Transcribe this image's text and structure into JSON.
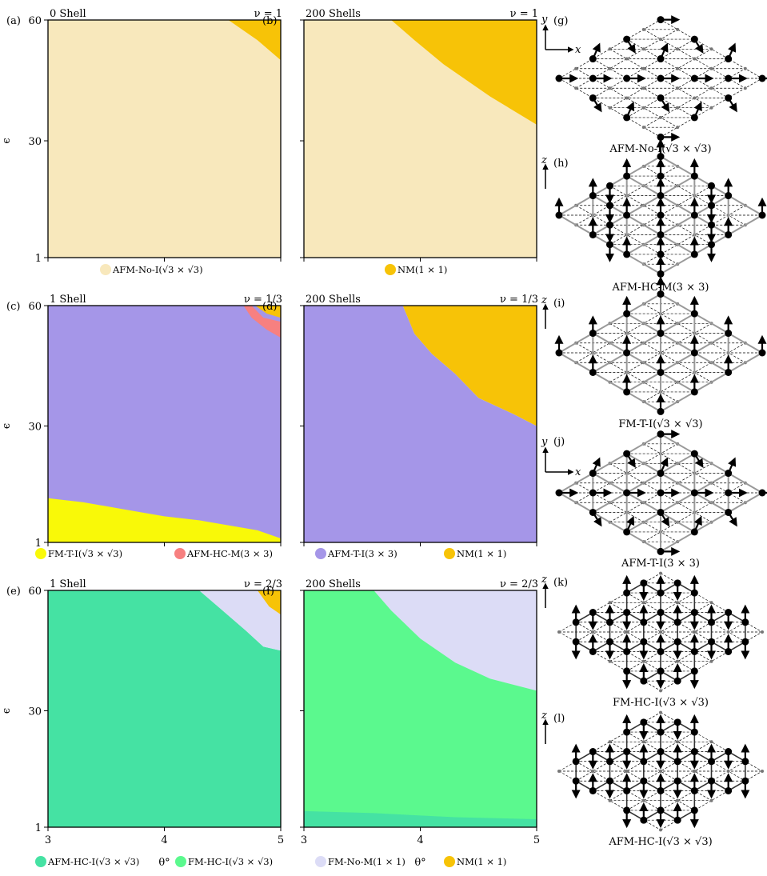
{
  "colors": {
    "AFM-No-I": "#f8e8bc",
    "NM": "#f7c307",
    "AFM-T-I": "#a596e8",
    "FM-T-I": "#f9f908",
    "AFM-HC-M": "#f78080",
    "AFM-HC-I": "#45e2a3",
    "FM-HC-I": "#5bf98e",
    "FM-No-M": "#dcdcf6"
  },
  "chart_data": [
    {
      "id": "a",
      "type": "area",
      "panel_label": "(a)",
      "title": "0 Shell",
      "nu": "ν = 1",
      "xlim": [
        3,
        5
      ],
      "ylim": [
        1,
        60
      ],
      "xticks": [],
      "yticks": [
        "1",
        "30",
        "60"
      ],
      "ylabel": "ϵ",
      "xlabel": "",
      "regions": [
        {
          "phase": "AFM-No-I",
          "color": "#f8e8bc",
          "polygon": [
            [
              3,
              1
            ],
            [
              5,
              1
            ],
            [
              5,
              50
            ],
            [
              4.8,
              55
            ],
            [
              4.55,
              60
            ],
            [
              3,
              60
            ]
          ]
        },
        {
          "phase": "NM",
          "color": "#f7c307",
          "polygon": [
            [
              4.55,
              60
            ],
            [
              4.8,
              55
            ],
            [
              5,
              50
            ],
            [
              5,
              60
            ]
          ]
        }
      ],
      "legend": [
        {
          "label": "AFM-No-I(√3 × √3)",
          "color": "#f8e8bc"
        }
      ]
    },
    {
      "id": "b",
      "type": "area",
      "panel_label": "(b)",
      "title": "200 Shells",
      "nu": "ν = 1",
      "xlim": [
        3,
        5
      ],
      "ylim": [
        1,
        60
      ],
      "xticks": [],
      "yticks": [],
      "xlabel": "",
      "ylabel": "",
      "regions": [
        {
          "phase": "AFM-No-I",
          "color": "#f8e8bc",
          "polygon": [
            [
              3,
              1
            ],
            [
              5,
              1
            ],
            [
              5,
              34
            ],
            [
              4.6,
              41
            ],
            [
              4.2,
              49
            ],
            [
              3.95,
              55
            ],
            [
              3.75,
              60
            ],
            [
              3,
              60
            ]
          ]
        },
        {
          "phase": "NM",
          "color": "#f7c307",
          "polygon": [
            [
              3.75,
              60
            ],
            [
              3.95,
              55
            ],
            [
              4.2,
              49
            ],
            [
              4.6,
              41
            ],
            [
              5,
              34
            ],
            [
              5,
              60
            ]
          ]
        }
      ],
      "legend": [
        {
          "label": "NM(1 × 1)",
          "color": "#f7c307"
        }
      ]
    },
    {
      "id": "c",
      "type": "area",
      "panel_label": "(c)",
      "title": "1 Shell",
      "nu": "ν = 1/3",
      "xlim": [
        3,
        5
      ],
      "ylim": [
        1,
        60
      ],
      "xticks": [],
      "yticks": [
        "1",
        "30",
        "60"
      ],
      "ylabel": "ϵ",
      "xlabel": "",
      "regions": [
        {
          "phase": "AFM-T-I",
          "color": "#a596e8",
          "polygon": [
            [
              3,
              1
            ],
            [
              5,
              1
            ],
            [
              5,
              60
            ],
            [
              3,
              60
            ]
          ]
        },
        {
          "phase": "FM-T-I",
          "color": "#f9f908",
          "polygon": [
            [
              3,
              12
            ],
            [
              3.3,
              11
            ],
            [
              3.5,
              10
            ],
            [
              3.8,
              8.5
            ],
            [
              4,
              7.5
            ],
            [
              4.3,
              6.5
            ],
            [
              4.6,
              5
            ],
            [
              4.8,
              4
            ],
            [
              5,
              2
            ],
            [
              5,
              1
            ],
            [
              3,
              1
            ]
          ]
        },
        {
          "phase": "AFM-HC-M",
          "color": "#f78080",
          "polygon": [
            [
              4.75,
              60
            ],
            [
              4.85,
              57
            ],
            [
              5,
              56
            ],
            [
              5,
              52
            ],
            [
              4.88,
              54
            ],
            [
              4.75,
              57
            ],
            [
              4.68,
              60
            ]
          ]
        },
        {
          "phase": "NM",
          "color": "#f7c307",
          "polygon": [
            [
              4.78,
              60
            ],
            [
              4.88,
              58
            ],
            [
              5,
              57
            ],
            [
              5,
              60
            ]
          ]
        }
      ],
      "legend": [
        {
          "label": "FM-T-I(√3 × √3)",
          "color": "#f9f908"
        },
        {
          "label": "AFM-HC-M(3 × 3)",
          "color": "#f78080"
        }
      ]
    },
    {
      "id": "d",
      "type": "area",
      "panel_label": "(d)",
      "title": "200 Shells",
      "nu": "ν = 1/3",
      "xlim": [
        3,
        5
      ],
      "ylim": [
        1,
        60
      ],
      "xticks": [],
      "yticks": [],
      "xlabel": "",
      "ylabel": "",
      "regions": [
        {
          "phase": "AFM-T-I",
          "color": "#a596e8",
          "polygon": [
            [
              3,
              1
            ],
            [
              5,
              1
            ],
            [
              5,
              30
            ],
            [
              4.8,
              33
            ],
            [
              4.5,
              37
            ],
            [
              4.3,
              43
            ],
            [
              4.1,
              48
            ],
            [
              3.95,
              53
            ],
            [
              3.85,
              60
            ],
            [
              3,
              60
            ]
          ]
        },
        {
          "phase": "NM",
          "color": "#f7c307",
          "polygon": [
            [
              3.85,
              60
            ],
            [
              3.95,
              53
            ],
            [
              4.1,
              48
            ],
            [
              4.3,
              43
            ],
            [
              4.5,
              37
            ],
            [
              4.8,
              33
            ],
            [
              5,
              30
            ],
            [
              5,
              60
            ]
          ]
        }
      ],
      "legend": [
        {
          "label": "AFM-T-I(3 × 3)",
          "color": "#a596e8"
        },
        {
          "label": "NM(1 × 1)",
          "color": "#f7c307"
        }
      ]
    },
    {
      "id": "e",
      "type": "area",
      "panel_label": "(e)",
      "title": "1 Shell",
      "nu": "ν = 2/3",
      "xlim": [
        3,
        5
      ],
      "ylim": [
        1,
        60
      ],
      "xticks": [
        "3",
        "4",
        "5"
      ],
      "yticks": [
        "1",
        "30",
        "60"
      ],
      "ylabel": "ϵ",
      "xlabel": "θ°",
      "regions": [
        {
          "phase": "AFM-HC-I",
          "color": "#45e2a3",
          "polygon": [
            [
              3,
              1
            ],
            [
              5,
              1
            ],
            [
              5,
              45
            ],
            [
              4.85,
              46
            ],
            [
              4.7,
              50
            ],
            [
              4.5,
              55
            ],
            [
              4.3,
              60
            ],
            [
              3,
              60
            ]
          ]
        },
        {
          "phase": "FM-No-M",
          "color": "#dcdcf6",
          "polygon": [
            [
              4.3,
              60
            ],
            [
              4.5,
              55
            ],
            [
              4.7,
              50
            ],
            [
              4.85,
              46
            ],
            [
              5,
              45
            ],
            [
              5,
              60
            ]
          ]
        },
        {
          "phase": "NM",
          "color": "#f7c307",
          "polygon": [
            [
              4.8,
              60
            ],
            [
              4.9,
              56
            ],
            [
              5,
              54
            ],
            [
              5,
              60
            ]
          ]
        }
      ],
      "legend": [
        {
          "label": "AFM-HC-I(√3 × √3)",
          "color": "#45e2a3"
        }
      ]
    },
    {
      "id": "f",
      "type": "area",
      "panel_label": "(f)",
      "title": "200 Shells",
      "nu": "ν = 2/3",
      "xlim": [
        3,
        5
      ],
      "ylim": [
        1,
        60
      ],
      "xticks": [
        "3",
        "4",
        "5"
      ],
      "yticks": [],
      "xlabel": "θ°",
      "ylabel": "",
      "regions": [
        {
          "phase": "FM-No-M",
          "color": "#dcdcf6",
          "polygon": [
            [
              3,
              1
            ],
            [
              5,
              1
            ],
            [
              5,
              60
            ],
            [
              3,
              60
            ]
          ]
        },
        {
          "phase": "FM-HC-I",
          "color": "#5bf98e",
          "polygon": [
            [
              3,
              1
            ],
            [
              5,
              1
            ],
            [
              5,
              35
            ],
            [
              4.6,
              38
            ],
            [
              4.3,
              42
            ],
            [
              4,
              48
            ],
            [
              3.75,
              55
            ],
            [
              3.6,
              60
            ],
            [
              3,
              60
            ]
          ]
        },
        {
          "phase": "AFM-HC-I",
          "color": "#45e2a3",
          "polygon": [
            [
              3,
              1
            ],
            [
              5,
              1
            ],
            [
              5,
              3
            ],
            [
              4.3,
              3.5
            ],
            [
              3.6,
              4.5
            ],
            [
              3,
              5
            ]
          ]
        }
      ],
      "legend": [
        {
          "label": "FM-HC-I(√3 × √3)",
          "color": "#5bf98e"
        },
        {
          "label": "FM-No-M(1 × 1)",
          "color": "#dcdcf6"
        },
        {
          "label": "NM(1 × 1)",
          "color": "#f7c307"
        }
      ]
    }
  ],
  "lattices": [
    {
      "label": "(g)",
      "caption": "AFM-No-I(√3 × √3)",
      "axes": "xy",
      "axis_label_1": "y",
      "axis_label_2": "x",
      "bonds": "none",
      "spins": "inplane"
    },
    {
      "label": "(h)",
      "caption": "AFM-HC-M(3 × 3)",
      "axes": "z",
      "axis_label_1": "z",
      "bonds": "dense",
      "spins": "hcm"
    },
    {
      "label": "(i)",
      "caption": "FM-T-I(√3 × √3)",
      "axes": "z",
      "axis_label_1": "z",
      "bonds": "triangle",
      "spins": "fmti"
    },
    {
      "label": "(j)",
      "caption": "AFM-T-I(3 × 3)",
      "axes": "xy",
      "axis_label_1": "y",
      "axis_label_2": "x",
      "bonds": "triangle",
      "spins": "afmti"
    },
    {
      "label": "(k)",
      "caption": "FM-HC-I(√3 × √3)",
      "axes": "z",
      "axis_label_1": "z",
      "bonds": "honeycomb",
      "spins": "fmhc"
    },
    {
      "label": "(l)",
      "caption": "AFM-HC-I(√3 × √3)",
      "axes": "z",
      "axis_label_1": "z",
      "bonds": "honeycomb",
      "spins": "afmhc"
    }
  ]
}
